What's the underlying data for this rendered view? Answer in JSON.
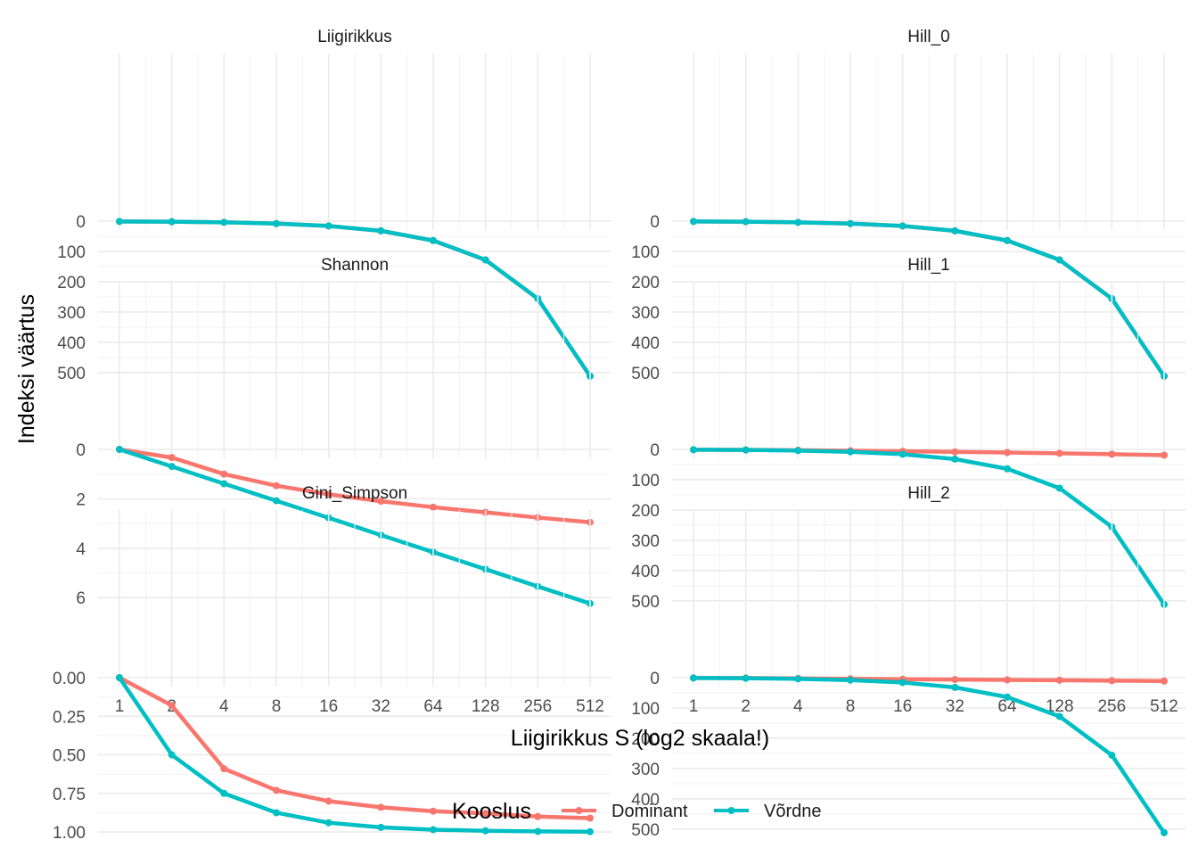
{
  "chart_data": {
    "type": "line",
    "facets": [
      "Liigirikkus",
      "Hill_0",
      "Shannon",
      "Hill_1",
      "Gini_Simpson",
      "Hill_2"
    ],
    "xlabel": "Liigirikkus S (log2 skaala!)",
    "ylabel": "Indeksi väärtus",
    "x_scale": "log2",
    "x": [
      1,
      2,
      4,
      8,
      16,
      32,
      64,
      128,
      256,
      512
    ],
    "x_tick_labels": [
      "1",
      "2",
      "4",
      "8",
      "16",
      "32",
      "64",
      "128",
      "256",
      "512"
    ],
    "legend": {
      "title": "Kooslus",
      "position": "bottom",
      "entries": [
        {
          "name": "Dominant",
          "color": "#F8766D"
        },
        {
          "name": "Võrdne",
          "color": "#00BFC4"
        }
      ]
    },
    "grid": true,
    "panels": [
      {
        "facet": "Liigirikkus",
        "ylim": [
          0,
          530
        ],
        "y_ticks": [
          0,
          100,
          200,
          300,
          400,
          500
        ],
        "y_tick_labels": [
          "0",
          "100",
          "200",
          "300",
          "400",
          "500"
        ],
        "series": [
          {
            "name": "Dominant",
            "values": [
              1,
              2,
              4,
              8,
              16,
              32,
              64,
              128,
              256,
              512
            ]
          },
          {
            "name": "Võrdne",
            "values": [
              1,
              2,
              4,
              8,
              16,
              32,
              64,
              128,
              256,
              512
            ]
          }
        ]
      },
      {
        "facet": "Hill_0",
        "ylim": [
          0,
          530
        ],
        "y_ticks": [
          0,
          100,
          200,
          300,
          400,
          500
        ],
        "y_tick_labels": [
          "0",
          "100",
          "200",
          "300",
          "400",
          "500"
        ],
        "series": [
          {
            "name": "Dominant",
            "values": [
              1,
              2,
              4,
              8,
              16,
              32,
              64,
              128,
              256,
              512
            ]
          },
          {
            "name": "Võrdne",
            "values": [
              1,
              2,
              4,
              8,
              16,
              32,
              64,
              128,
              256,
              512
            ]
          }
        ]
      },
      {
        "facet": "Shannon",
        "ylim": [
          0,
          6.5
        ],
        "y_ticks": [
          0,
          2,
          4,
          6
        ],
        "y_tick_labels": [
          "0",
          "2",
          "4",
          "6"
        ],
        "series": [
          {
            "name": "Dominant",
            "values": [
              0,
              0.33,
              1.0,
              1.47,
              1.82,
              2.1,
              2.34,
              2.55,
              2.76,
              2.95
            ]
          },
          {
            "name": "Võrdne",
            "values": [
              0,
              0.69,
              1.39,
              2.08,
              2.77,
              3.47,
              4.16,
              4.85,
              5.55,
              6.24
            ]
          }
        ]
      },
      {
        "facet": "Hill_1",
        "ylim": [
          0,
          530
        ],
        "y_ticks": [
          0,
          100,
          200,
          300,
          400,
          500
        ],
        "y_tick_labels": [
          "0",
          "100",
          "200",
          "300",
          "400",
          "500"
        ],
        "series": [
          {
            "name": "Dominant",
            "values": [
              1,
              1.4,
              2.7,
              4.4,
              6.2,
              8.2,
              10.4,
              12.8,
              15.8,
              19.1
            ]
          },
          {
            "name": "Võrdne",
            "values": [
              1,
              2,
              4,
              8,
              16,
              32,
              64,
              128,
              256,
              512
            ]
          }
        ]
      },
      {
        "facet": "Gini_Simpson",
        "ylim": [
          0,
          1.04
        ],
        "y_ticks": [
          0,
          0.25,
          0.5,
          0.75,
          1
        ],
        "y_tick_labels": [
          "0.00",
          "0.25",
          "0.50",
          "0.75",
          "1.00"
        ],
        "series": [
          {
            "name": "Dominant",
            "values": [
              0,
              0.18,
              0.59,
              0.73,
              0.8,
              0.84,
              0.865,
              0.88,
              0.9,
              0.91
            ]
          },
          {
            "name": "Võrdne",
            "values": [
              0,
              0.5,
              0.75,
              0.875,
              0.94,
              0.97,
              0.985,
              0.992,
              0.996,
              0.998
            ]
          }
        ]
      },
      {
        "facet": "Hill_2",
        "ylim": [
          0,
          530
        ],
        "y_ticks": [
          0,
          100,
          200,
          300,
          400,
          500
        ],
        "y_tick_labels": [
          "0",
          "100",
          "200",
          "300",
          "400",
          "500"
        ],
        "series": [
          {
            "name": "Dominant",
            "values": [
              1,
              1.2,
              2.4,
              3.7,
              5.0,
              6.3,
              7.4,
              8.3,
              10.0,
              11.1
            ]
          },
          {
            "name": "Võrdne",
            "values": [
              1,
              2,
              4,
              8,
              16,
              32,
              64,
              128,
              256,
              512
            ]
          }
        ]
      }
    ]
  }
}
